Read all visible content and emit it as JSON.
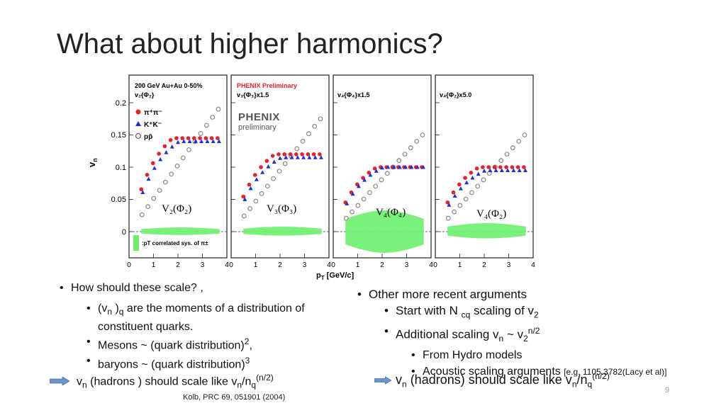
{
  "slide": {
    "title": "What about higher harmonics?",
    "page_number": "9",
    "footnote": "Kolb, PRC 69, 051901 (2004)"
  },
  "figure": {
    "ylabel": "v",
    "ylabel_sub": "n",
    "xlabel": "p",
    "xlabel_sub": "T",
    "xlabel_units": " [GeV/c]",
    "yticks": [
      "0.2",
      "0.15",
      "0.1",
      "0.05",
      "0"
    ],
    "xticks": [
      "0",
      "1",
      "2",
      "3",
      "4"
    ],
    "panel1": {
      "line1": "200 GeV Au+Au 0-50%",
      "line2": "v₂{Φ₂}",
      "legend": [
        "π⁺π⁻",
        "K⁺K⁻",
        "pp̄"
      ],
      "sys_note": ":pT correlated sys. of π±",
      "big_label": "V₂(Φ₂)"
    },
    "panel2": {
      "header": "PHENIX Preliminary",
      "line2": "v₃{Φ₃}x1.5",
      "logo_word": "PHENIX",
      "logo_sub": "preliminary",
      "big_label": "V₃(Φ₃)"
    },
    "panel3": {
      "line2": "v₄{Φ₄}x1.5",
      "big_label": "V₄(Φ₄)"
    },
    "panel4": {
      "line2": "v₄{Φ₂}x5.0",
      "big_label": "V₄(Φ₂)"
    }
  },
  "left_bullets": {
    "b1": "How should these scale? ,",
    "b2a": "(v",
    "b2b": "n",
    "b2c": " )",
    "b2d": "q",
    "b2e": " are the moments of a distribution of constituent quarks.",
    "b3a": "Mesons ~  (quark distribution)",
    "b3b": "2",
    "b3c": ",",
    "b4a": "baryons ~ (quark distribution)",
    "b4b": "3"
  },
  "left_conclusion": {
    "a": "v",
    "b": "n",
    "c": " (hadrons ) should scale like v",
    "d": "n",
    "e": "/n",
    "f": "q",
    "g": "(n/2)"
  },
  "right_bullets": {
    "b1": "Other more recent  arguments",
    "b2a": "Start with  N ",
    "b2b": "cq",
    "b2c": " scaling of v",
    "b2d": "2",
    "b3a": " Additional scaling v",
    "b3b": "n",
    "b3c": "  ~  v",
    "b3d": "2",
    "b3e": "n/2",
    "b4": "From Hydro models",
    "b5a": "Acoustic scaling arguments ",
    "b5b": "[e.g. 1105.3782(Lacy et al)]"
  },
  "right_conclusion": {
    "a": "v",
    "b": "n",
    "c": " (hadrons) should scale like v",
    "d": "n",
    "e": "/n",
    "f": "q",
    "g": "(n/2)"
  },
  "colors": {
    "pion": "#e8202a",
    "kaon": "#1f2fd0",
    "proton": "#888888",
    "sys_band": "#6cf06c",
    "phenix_red": "#e8202a",
    "arrow": "#6f93c8"
  }
}
